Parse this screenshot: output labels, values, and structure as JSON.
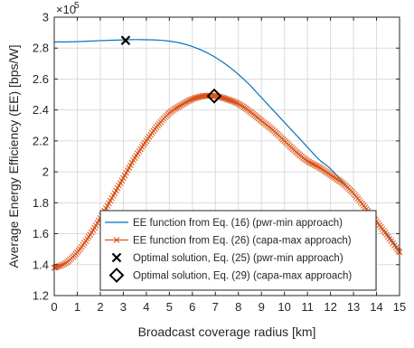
{
  "chart_data": {
    "type": "line",
    "title": "",
    "xlabel": "Broadcast coverage radius [km]",
    "ylabel": "Average Energy Efficiency (EE) [bps/W]",
    "y_scale_label": "×10",
    "y_scale_exponent": "5",
    "xlim": [
      0,
      15
    ],
    "ylim": [
      1.2,
      3.0
    ],
    "x_ticks": [
      "0",
      "1",
      "2",
      "3",
      "4",
      "5",
      "6",
      "7",
      "8",
      "9",
      "10",
      "11",
      "12",
      "13",
      "14",
      "15"
    ],
    "y_ticks": [
      "1.2",
      "1.4",
      "1.6",
      "1.8",
      "2",
      "2.2",
      "2.4",
      "2.6",
      "2.8",
      "3"
    ],
    "grid": true,
    "legend_position": "bottom-left",
    "series": [
      {
        "name": "EE function from Eq. (16) (pwr-min approach)",
        "color": "#0072BD",
        "marker": "none",
        "x": [
          0,
          0.5,
          1,
          1.5,
          2,
          2.5,
          3,
          3.5,
          4,
          4.5,
          5,
          5.5,
          6,
          6.5,
          7,
          7.5,
          8,
          8.5,
          9,
          9.5,
          10,
          10.5,
          11,
          11.5,
          12,
          12.5,
          13,
          13.5,
          14,
          14.5,
          15
        ],
        "y": [
          2.84,
          2.84,
          2.842,
          2.845,
          2.848,
          2.851,
          2.853,
          2.855,
          2.854,
          2.852,
          2.845,
          2.832,
          2.81,
          2.78,
          2.74,
          2.69,
          2.63,
          2.56,
          2.48,
          2.4,
          2.32,
          2.24,
          2.16,
          2.08,
          2.02,
          1.94,
          1.86,
          1.77,
          1.68,
          1.59,
          1.49
        ]
      },
      {
        "name": "EE function from Eq. (26) (capa-max approach)",
        "color": "#D95319",
        "marker": "x",
        "x": [
          0,
          0.5,
          1,
          1.5,
          2,
          2.5,
          3,
          3.5,
          4,
          4.5,
          5,
          5.5,
          6,
          6.5,
          7,
          7.5,
          8,
          8.5,
          9,
          9.5,
          10,
          10.5,
          11,
          11.5,
          12,
          12.5,
          13,
          13.5,
          14,
          14.5,
          15
        ],
        "y": [
          1.38,
          1.41,
          1.48,
          1.58,
          1.7,
          1.83,
          1.96,
          2.09,
          2.2,
          2.3,
          2.38,
          2.43,
          2.47,
          2.49,
          2.49,
          2.47,
          2.44,
          2.39,
          2.33,
          2.27,
          2.2,
          2.13,
          2.07,
          2.03,
          1.98,
          1.93,
          1.86,
          1.77,
          1.68,
          1.58,
          1.48
        ]
      }
    ],
    "points": [
      {
        "name": "Optimal solution, Eq. (25) (pwr-min approach)",
        "marker": "x",
        "color": "#000000",
        "x": 3.1,
        "y": 2.85
      },
      {
        "name": "Optimal solution, Eq. (29) (capa-max approach)",
        "marker": "diamond",
        "color": "#000000",
        "x": 6.95,
        "y": 2.49
      }
    ]
  }
}
